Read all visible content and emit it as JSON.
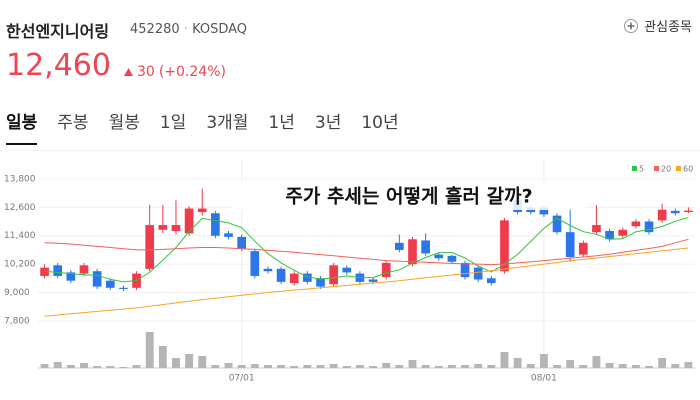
{
  "header": {
    "name": "한선엔지니어링",
    "code": "452280",
    "market": "KOSDAQ",
    "watch_button": "관심종목",
    "price": "12,460",
    "change": "30",
    "change_pct": "(+0.24%)"
  },
  "tabs": [
    "일봉",
    "주봉",
    "월봉",
    "1일",
    "3개월",
    "1년",
    "3년",
    "10년"
  ],
  "chart_data": {
    "type": "candlestick",
    "annotation": "주가 추세는 어떻게 흘러 갈까?",
    "categories": [
      null,
      null,
      null,
      null,
      null,
      null,
      null,
      null,
      null,
      null,
      null,
      null,
      null,
      null,
      null,
      "07/01",
      null,
      null,
      null,
      null,
      null,
      null,
      null,
      null,
      null,
      null,
      null,
      null,
      null,
      null,
      null,
      null,
      null,
      null,
      null,
      null,
      null,
      null,
      "08/01",
      null,
      null,
      null,
      null,
      null,
      null,
      null,
      null,
      null,
      null,
      null
    ],
    "open": [
      9700,
      10150,
      9850,
      9800,
      9900,
      9500,
      9200,
      9200,
      10000,
      11650,
      11600,
      11500,
      12400,
      12350,
      11500,
      11350,
      10750,
      10000,
      10000,
      9400,
      9800,
      9600,
      9350,
      10050,
      9800,
      9550,
      9650,
      11100,
      10200,
      11200,
      10600,
      10550,
      10250,
      10050,
      9600,
      9900,
      12900,
      12600,
      12600,
      12250,
      11550,
      10600,
      11550,
      11600,
      11400,
      11800,
      12000,
      12050,
      12450,
      12400
    ],
    "high": [
      10200,
      10250,
      9950,
      10250,
      10000,
      9600,
      9300,
      9900,
      12700,
      12700,
      12900,
      12650,
      13400,
      12450,
      11600,
      11450,
      10850,
      10100,
      10100,
      9900,
      9900,
      9700,
      10250,
      10150,
      9900,
      9650,
      10350,
      11450,
      11350,
      11500,
      10700,
      10600,
      10350,
      10150,
      9700,
      12150,
      13000,
      12700,
      12700,
      12350,
      12600,
      11200,
      12700,
      11700,
      11750,
      12100,
      12100,
      12750,
      12550,
      12600
    ],
    "low": [
      9600,
      9600,
      9400,
      9700,
      9150,
      9100,
      9050,
      9100,
      9900,
      11500,
      11450,
      11400,
      12250,
      11300,
      11250,
      10750,
      9600,
      9800,
      9350,
      9300,
      9350,
      9150,
      9250,
      9750,
      9350,
      9350,
      9550,
      10700,
      10100,
      10550,
      10350,
      10200,
      9550,
      9450,
      9300,
      9800,
      12300,
      12300,
      12200,
      11450,
      10300,
      10500,
      11450,
      11150,
      11300,
      11700,
      11450,
      11950,
      12250,
      12350
    ],
    "close": [
      10050,
      9700,
      9500,
      10150,
      9250,
      9200,
      9150,
      9800,
      11850,
      11850,
      11850,
      12550,
      12550,
      11400,
      11350,
      10850,
      9700,
      9900,
      9450,
      9800,
      9450,
      9250,
      10150,
      9850,
      9450,
      9450,
      10250,
      10800,
      11250,
      10650,
      10450,
      10300,
      9650,
      9550,
      9400,
      12050,
      12400,
      12400,
      12300,
      11550,
      10500,
      11100,
      11850,
      11250,
      11650,
      12000,
      11550,
      12500,
      12350,
      12460
    ],
    "volume": [
      4,
      6,
      3,
      5,
      2,
      2,
      1,
      3,
      36,
      22,
      10,
      14,
      12,
      3,
      5,
      3,
      4,
      3,
      3,
      2,
      3,
      3,
      4,
      2,
      3,
      2,
      5,
      3,
      8,
      3,
      2,
      3,
      3,
      4,
      3,
      16,
      10,
      4,
      14,
      3,
      8,
      3,
      12,
      5,
      4,
      3,
      2,
      10,
      4,
      6
    ],
    "up_color": "#ef3b4c",
    "down_color": "#2b76e8",
    "volume_color": "#b5b5b5",
    "series": [
      {
        "name": "5",
        "color": "#2fc53e",
        "values": [
          9900,
          9850,
          9800,
          9750,
          9730,
          9560,
          9450,
          9510,
          9850,
          10370,
          10900,
          11580,
          12130,
          12040,
          11940,
          11740,
          11170,
          10640,
          10250,
          9940,
          9660,
          9570,
          9620,
          9700,
          9630,
          9630,
          9830,
          9960,
          10240,
          10480,
          10680,
          10690,
          10460,
          10120,
          9870,
          10190,
          10610,
          11160,
          11710,
          12140,
          11830,
          11570,
          11460,
          11250,
          11270,
          11570,
          11660,
          11790,
          12010,
          12170
        ]
      },
      {
        "name": "20",
        "color": "#f0615f",
        "values": [
          11100,
          11080,
          11050,
          11000,
          10950,
          10900,
          10850,
          10800,
          10800,
          10820,
          10850,
          10880,
          10900,
          10900,
          10880,
          10850,
          10820,
          10780,
          10740,
          10700,
          10650,
          10600,
          10550,
          10500,
          10450,
          10400,
          10350,
          10320,
          10300,
          10280,
          10250,
          10230,
          10210,
          10200,
          10180,
          10200,
          10250,
          10300,
          10350,
          10400,
          10450,
          10500,
          10550,
          10620,
          10700,
          10780,
          10860,
          10950,
          11100,
          11250
        ]
      },
      {
        "name": "60",
        "color": "#f5a623",
        "values": [
          8000,
          8050,
          8100,
          8150,
          8200,
          8250,
          8300,
          8350,
          8420,
          8490,
          8560,
          8630,
          8700,
          8760,
          8820,
          8880,
          8940,
          9000,
          9050,
          9100,
          9150,
          9200,
          9250,
          9300,
          9350,
          9400,
          9450,
          9500,
          9560,
          9620,
          9680,
          9740,
          9800,
          9860,
          9920,
          9990,
          10060,
          10130,
          10200,
          10270,
          10340,
          10400,
          10460,
          10520,
          10580,
          10640,
          10700,
          10760,
          10820,
          10880
        ]
      }
    ],
    "ylim": [
      7500,
      14600
    ],
    "yticks": [
      {
        "value": 7800,
        "label": "7,800"
      },
      {
        "value": 9000,
        "label": "9,000"
      },
      {
        "value": 10200,
        "label": "10,200"
      },
      {
        "value": 11400,
        "label": "11,400"
      },
      {
        "value": 12600,
        "label": "12,600"
      },
      {
        "value": 13800,
        "label": "13,800"
      }
    ],
    "grid": true,
    "legend": "top-right"
  }
}
